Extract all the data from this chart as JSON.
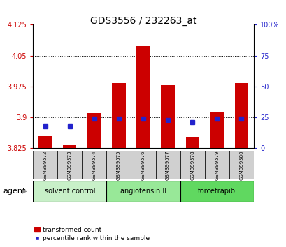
{
  "title": "GDS3556 / 232263_at",
  "samples": [
    "GSM399572",
    "GSM399573",
    "GSM399574",
    "GSM399575",
    "GSM399576",
    "GSM399577",
    "GSM399578",
    "GSM399579",
    "GSM399580"
  ],
  "groups": [
    {
      "label": "solvent control",
      "indices": [
        0,
        1,
        2
      ]
    },
    {
      "label": "angiotensin II",
      "indices": [
        3,
        4,
        5
      ]
    },
    {
      "label": "torcetrapib",
      "indices": [
        6,
        7,
        8
      ]
    }
  ],
  "group_colors": [
    "#c8f0c8",
    "#98e898",
    "#60d860"
  ],
  "transformed_counts": [
    3.855,
    3.832,
    3.91,
    3.983,
    4.073,
    3.978,
    3.853,
    3.912,
    3.983
  ],
  "percentile_ranks": [
    18,
    18,
    24,
    24,
    24,
    23,
    21,
    24,
    24
  ],
  "ymin": 3.825,
  "ymax": 4.125,
  "yticks": [
    3.825,
    3.9,
    3.975,
    4.05,
    4.125
  ],
  "ytick_labels": [
    "3.825",
    "3.9",
    "3.975",
    "4.05",
    "4.125"
  ],
  "y2min": 0,
  "y2max": 100,
  "y2ticks": [
    0,
    25,
    50,
    75,
    100
  ],
  "y2tick_labels": [
    "0",
    "25",
    "50",
    "75",
    "100%"
  ],
  "bar_color": "#cc0000",
  "dot_color": "#2222cc",
  "bar_width": 0.55,
  "agent_label": "agent",
  "legend_bar_label": "transformed count",
  "legend_dot_label": "percentile rank within the sample",
  "left_tick_color": "#cc0000",
  "right_tick_color": "#2222cc",
  "grid_color": "#000000",
  "sample_box_color": "#d0d0d0",
  "title_fontsize": 10,
  "tick_fontsize": 7,
  "sample_fontsize": 5,
  "group_fontsize": 7,
  "legend_fontsize": 6.5,
  "agent_fontsize": 8
}
